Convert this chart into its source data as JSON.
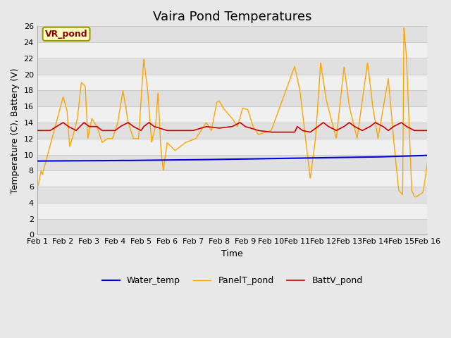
{
  "title": "Vaira Pond Temperatures",
  "xlabel": "Time",
  "ylabel": "Temperature (C), Battery (V)",
  "xlim": [
    0,
    15
  ],
  "ylim": [
    0,
    26
  ],
  "yticks": [
    0,
    2,
    4,
    6,
    8,
    10,
    12,
    14,
    16,
    18,
    20,
    22,
    24,
    26
  ],
  "xtick_labels": [
    "Feb 1",
    "Feb 2",
    "Feb 3",
    "Feb 4",
    "Feb 5",
    "Feb 6",
    "Feb 7",
    "Feb 8",
    "Feb 9",
    "Feb 10",
    "Feb 11",
    "Feb 12",
    "Feb 13",
    "Feb 14",
    "Feb 15",
    "Feb 16"
  ],
  "fig_bg": "#e8e8e8",
  "plot_bg": "#ffffff",
  "band_dark": "#e0e0e0",
  "band_light": "#f0f0f0",
  "grid_color": "#cccccc",
  "annotation_text": "VR_pond",
  "annotation_color": "#8B0000",
  "annotation_bg": "#FFFFC0",
  "annotation_edge": "#999900",
  "water_color": "#0000dd",
  "panel_color": "#FFA500",
  "batt_color": "#cc0000",
  "water_label": "Water_temp",
  "panel_label": "PanelT_pond",
  "batt_label": "BattV_pond",
  "title_fontsize": 13,
  "axis_fontsize": 9,
  "tick_fontsize": 8,
  "legend_fontsize": 9,
  "panel_spikes": [
    [
      0.05,
      6.2
    ],
    [
      0.15,
      8.0
    ],
    [
      0.2,
      7.5
    ],
    [
      1.0,
      17.2
    ],
    [
      1.15,
      15.5
    ],
    [
      1.25,
      11.0
    ],
    [
      1.35,
      12.0
    ],
    [
      1.55,
      14.5
    ],
    [
      1.7,
      19.0
    ],
    [
      1.85,
      18.5
    ],
    [
      1.95,
      12.0
    ],
    [
      2.1,
      14.5
    ],
    [
      2.3,
      13.5
    ],
    [
      2.5,
      11.5
    ],
    [
      2.7,
      12.0
    ],
    [
      2.9,
      12.0
    ],
    [
      3.1,
      14.0
    ],
    [
      3.3,
      18.0
    ],
    [
      3.5,
      14.0
    ],
    [
      3.7,
      12.0
    ],
    [
      3.9,
      12.0
    ],
    [
      4.1,
      22.0
    ],
    [
      4.25,
      18.0
    ],
    [
      4.4,
      11.5
    ],
    [
      4.55,
      13.5
    ],
    [
      4.65,
      17.8
    ],
    [
      4.75,
      11.0
    ],
    [
      4.85,
      8.0
    ],
    [
      5.0,
      11.5
    ],
    [
      5.3,
      10.5
    ],
    [
      5.7,
      11.5
    ],
    [
      6.1,
      12.0
    ],
    [
      6.5,
      14.0
    ],
    [
      6.7,
      13.0
    ],
    [
      6.9,
      16.5
    ],
    [
      7.0,
      16.7
    ],
    [
      7.15,
      15.8
    ],
    [
      7.5,
      14.5
    ],
    [
      7.7,
      13.5
    ],
    [
      7.9,
      15.8
    ],
    [
      8.1,
      15.6
    ],
    [
      8.3,
      13.5
    ],
    [
      8.5,
      12.5
    ],
    [
      9.0,
      13.0
    ],
    [
      9.9,
      21.0
    ],
    [
      10.1,
      18.0
    ],
    [
      10.5,
      7.0
    ],
    [
      10.7,
      12.0
    ],
    [
      10.9,
      21.5
    ],
    [
      11.1,
      17.0
    ],
    [
      11.5,
      12.0
    ],
    [
      11.8,
      21.0
    ],
    [
      12.0,
      16.0
    ],
    [
      12.3,
      12.0
    ],
    [
      12.7,
      21.5
    ],
    [
      12.9,
      16.0
    ],
    [
      13.1,
      12.0
    ],
    [
      13.5,
      19.5
    ],
    [
      13.7,
      12.0
    ],
    [
      13.9,
      5.5
    ],
    [
      14.0,
      5.2
    ],
    [
      14.05,
      5.0
    ],
    [
      14.1,
      26.0
    ],
    [
      14.2,
      22.0
    ],
    [
      14.4,
      5.5
    ],
    [
      14.5,
      4.8
    ],
    [
      14.55,
      4.7
    ],
    [
      14.7,
      5.0
    ],
    [
      14.8,
      5.2
    ],
    [
      14.85,
      5.5
    ],
    [
      15.0,
      9.0
    ]
  ],
  "batt_spikes": [
    [
      0.0,
      13.0
    ],
    [
      0.5,
      13.0
    ],
    [
      1.0,
      14.0
    ],
    [
      1.2,
      13.5
    ],
    [
      1.5,
      13.0
    ],
    [
      1.8,
      14.0
    ],
    [
      2.0,
      13.5
    ],
    [
      2.3,
      13.5
    ],
    [
      2.5,
      13.0
    ],
    [
      2.8,
      13.0
    ],
    [
      3.0,
      13.0
    ],
    [
      3.2,
      13.5
    ],
    [
      3.5,
      14.0
    ],
    [
      3.7,
      13.5
    ],
    [
      4.0,
      13.0
    ],
    [
      4.1,
      13.5
    ],
    [
      4.3,
      14.0
    ],
    [
      4.5,
      13.5
    ],
    [
      5.0,
      13.0
    ],
    [
      5.5,
      13.0
    ],
    [
      6.0,
      13.0
    ],
    [
      6.5,
      13.5
    ],
    [
      7.0,
      13.3
    ],
    [
      7.5,
      13.5
    ],
    [
      7.8,
      14.0
    ],
    [
      8.0,
      13.5
    ],
    [
      8.5,
      13.0
    ],
    [
      9.0,
      12.8
    ],
    [
      9.5,
      12.8
    ],
    [
      9.9,
      12.8
    ],
    [
      10.0,
      13.5
    ],
    [
      10.2,
      13.0
    ],
    [
      10.5,
      12.8
    ],
    [
      10.8,
      13.5
    ],
    [
      11.0,
      14.0
    ],
    [
      11.2,
      13.5
    ],
    [
      11.5,
      13.0
    ],
    [
      11.8,
      13.5
    ],
    [
      12.0,
      14.0
    ],
    [
      12.2,
      13.5
    ],
    [
      12.5,
      13.0
    ],
    [
      12.8,
      13.5
    ],
    [
      13.0,
      14.0
    ],
    [
      13.3,
      13.5
    ],
    [
      13.5,
      13.0
    ],
    [
      13.7,
      13.5
    ],
    [
      14.0,
      14.0
    ],
    [
      14.2,
      13.5
    ],
    [
      14.5,
      13.0
    ],
    [
      14.8,
      13.0
    ],
    [
      15.0,
      13.0
    ]
  ],
  "water_pts": [
    [
      0.0,
      9.2
    ],
    [
      3.0,
      9.25
    ],
    [
      6.0,
      9.35
    ],
    [
      9.0,
      9.5
    ],
    [
      11.0,
      9.6
    ],
    [
      13.0,
      9.7
    ],
    [
      14.0,
      9.8
    ],
    [
      15.0,
      9.9
    ]
  ]
}
